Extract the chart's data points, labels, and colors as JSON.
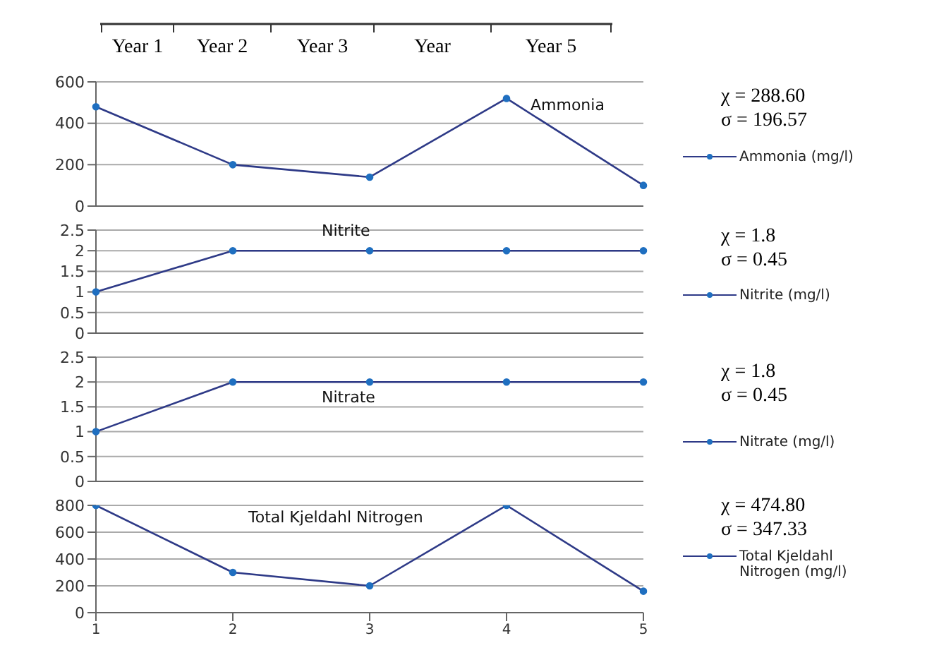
{
  "chart_data": [
    {
      "type": "other",
      "annotations": [
        "Year 1",
        "Year 2",
        "Year 3",
        "Year",
        "Year 5"
      ]
    },
    {
      "type": "line",
      "title": "Ammonia",
      "categories": [
        "1",
        "2",
        "3",
        "4",
        "5"
      ],
      "series": [
        {
          "name": "Ammonia (mg/l)",
          "color": "#2e3a87",
          "values": [
            480,
            200,
            140,
            520,
            100
          ]
        }
      ],
      "ylim": [
        0,
        600
      ],
      "yticks": [
        0,
        200,
        400,
        600
      ],
      "grid": "y",
      "legend": "right",
      "marker": "circle",
      "tick_labels": "y",
      "annotations": [
        "χ = 288.60",
        "σ = 196.57"
      ]
    },
    {
      "type": "line",
      "title": "Nitrite",
      "categories": [
        "1",
        "2",
        "3",
        "4",
        "5"
      ],
      "series": [
        {
          "name": "Nitrite (mg/l)",
          "color": "#2e3a87",
          "values": [
            1,
            2,
            2,
            2,
            2
          ]
        }
      ],
      "ylim": [
        0,
        2.5
      ],
      "yticks": [
        0,
        0.5,
        1,
        1.5,
        2,
        2.5
      ],
      "grid": "y",
      "legend": "right",
      "marker": "circle",
      "tick_labels": "y",
      "annotations": [
        "χ = 1.8",
        "σ = 0.45"
      ]
    },
    {
      "type": "line",
      "title": "Nitrate",
      "categories": [
        "1",
        "2",
        "3",
        "4",
        "5"
      ],
      "series": [
        {
          "name": "Nitrate (mg/l)",
          "color": "#2e3a87",
          "values": [
            1,
            2,
            2,
            2,
            2
          ]
        }
      ],
      "ylim": [
        0,
        2.5
      ],
      "yticks": [
        0,
        0.5,
        1,
        1.5,
        2,
        2.5
      ],
      "grid": "y",
      "legend": "right",
      "marker": "circle",
      "tick_labels": "y",
      "annotations": [
        "χ = 1.8",
        "σ = 0.45"
      ]
    },
    {
      "type": "line",
      "title": "Total Kjeldahl Nitrogen",
      "categories": [
        "1",
        "2",
        "3",
        "4",
        "5"
      ],
      "series": [
        {
          "name": "Total Kjeldahl Nitrogen (mg/l)",
          "color": "#2e3a87",
          "values": [
            800,
            300,
            200,
            800,
            160
          ]
        }
      ],
      "ylim": [
        0,
        800
      ],
      "yticks": [
        0,
        200,
        400,
        600,
        800
      ],
      "grid": "y",
      "legend": "right",
      "marker": "circle",
      "annotations": [
        "χ = 474.80",
        "σ = 347.33"
      ]
    }
  ]
}
